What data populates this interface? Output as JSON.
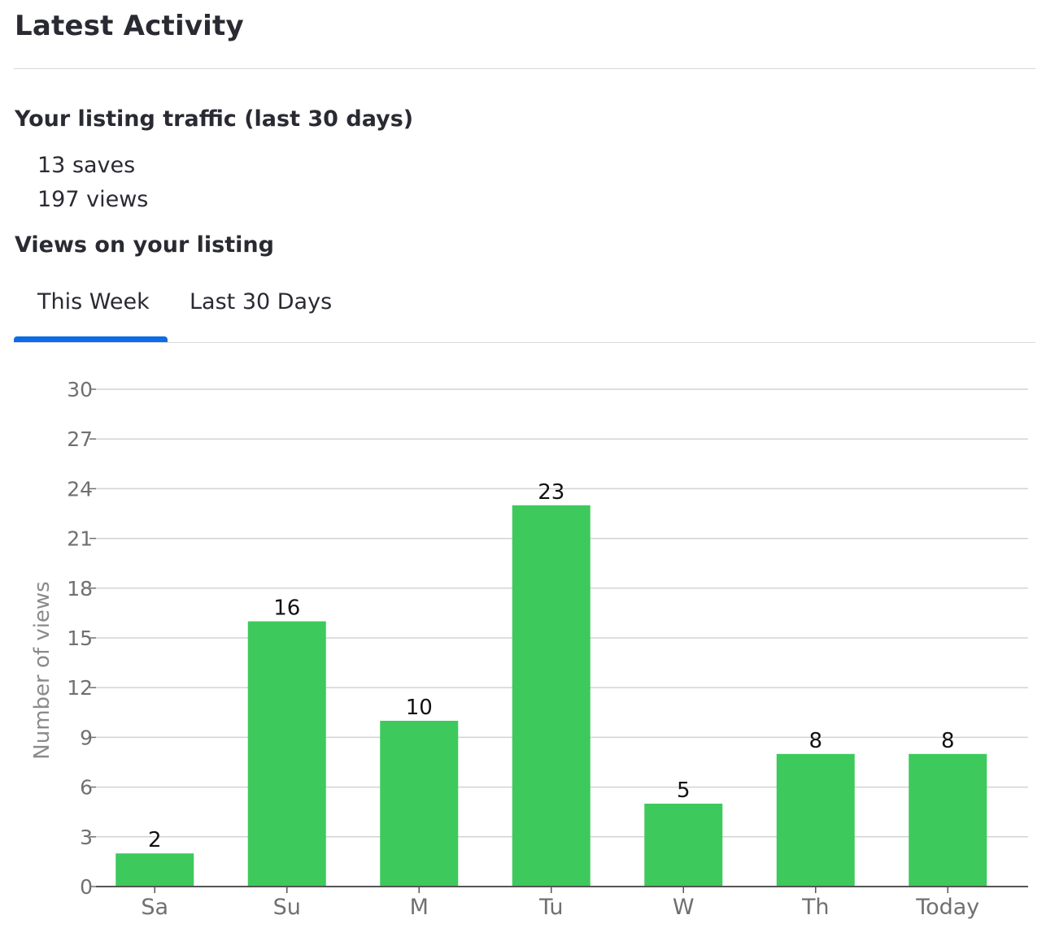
{
  "header": {
    "title": "Latest Activity"
  },
  "traffic": {
    "heading": "Your listing traffic (last 30 days)",
    "saves": "13 saves",
    "views": "197 views"
  },
  "views_section": {
    "heading": "Views on your listing",
    "tabs": [
      {
        "label": "This Week",
        "active": true
      },
      {
        "label": "Last 30 Days",
        "active": false
      }
    ]
  },
  "colors": {
    "bar": "#3ec95c",
    "tab_active": "#0d6be6",
    "grid": "#d3d3d3",
    "axis_text": "#707070",
    "label_text": "#111111"
  },
  "chart_data": {
    "type": "bar",
    "categories": [
      "Sa",
      "Su",
      "M",
      "Tu",
      "W",
      "Th",
      "Today"
    ],
    "values": [
      2,
      16,
      10,
      23,
      5,
      8,
      8
    ],
    "ylabel": "Number of views",
    "ylim": [
      0,
      30
    ],
    "yticks": [
      0,
      3,
      6,
      9,
      12,
      15,
      18,
      21,
      24,
      27,
      30
    ],
    "grid": true,
    "data_labels": true
  }
}
